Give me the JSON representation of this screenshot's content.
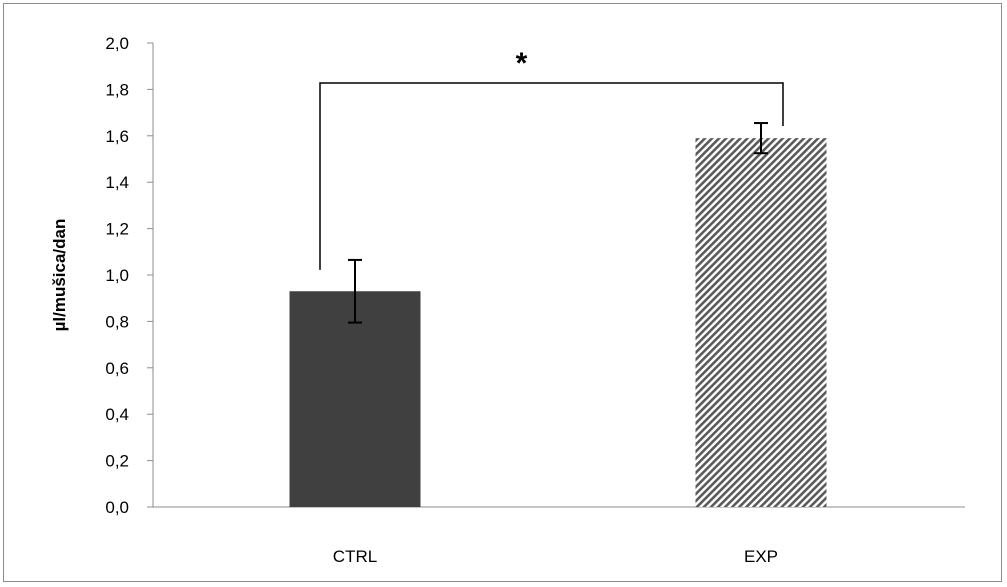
{
  "chart_data": {
    "type": "bar",
    "categories": [
      "CTRL",
      "EXP"
    ],
    "values": [
      0.93,
      1.59
    ],
    "errors": [
      0.135,
      0.065
    ],
    "ylabel": "µl/mušica/dan",
    "xlabel": "",
    "ylim": [
      0,
      2.0
    ],
    "yticks": [
      "0,0",
      "0,2",
      "0,4",
      "0,6",
      "0,8",
      "1,0",
      "1,2",
      "1,4",
      "1,6",
      "1,8",
      "2,0"
    ],
    "bar_styles": [
      {
        "category": "CTRL",
        "fill": "solid",
        "color": "#404040"
      },
      {
        "category": "EXP",
        "fill": "diagonal-hatch",
        "color": "#595959"
      }
    ],
    "significance": {
      "between": [
        "CTRL",
        "EXP"
      ],
      "label": "*"
    },
    "grid": false,
    "legend": "none"
  }
}
